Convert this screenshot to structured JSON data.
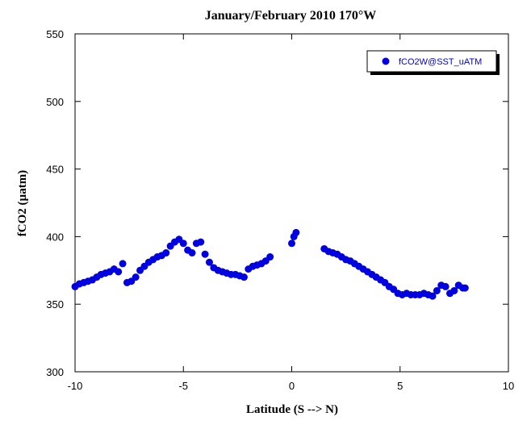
{
  "chart_data": {
    "type": "scatter",
    "title": "January/February 2010 170°W",
    "xlabel": "Latitude (S --> N)",
    "ylabel": "fCO2 (µatm)",
    "xlim": [
      -10,
      10
    ],
    "xticks": [
      -10,
      -5,
      0,
      5,
      10
    ],
    "ylim": [
      300,
      550
    ],
    "yticks": [
      300,
      350,
      400,
      450,
      500,
      550
    ],
    "legend": "upper right",
    "series": [
      {
        "name": "fCO2W@SST_uATM",
        "color": "#0000e0",
        "x": [
          -10.0,
          -9.8,
          -9.6,
          -9.4,
          -9.2,
          -9.0,
          -8.8,
          -8.6,
          -8.4,
          -8.2,
          -8.0,
          -7.8,
          -7.6,
          -7.4,
          -7.2,
          -7.0,
          -6.8,
          -6.6,
          -6.4,
          -6.2,
          -6.0,
          -5.8,
          -5.6,
          -5.4,
          -5.2,
          -5.0,
          -4.8,
          -4.6,
          -4.4,
          -4.2,
          -4.0,
          -3.8,
          -3.6,
          -3.4,
          -3.2,
          -3.0,
          -2.8,
          -2.6,
          -2.4,
          -2.2,
          -2.0,
          -1.8,
          -1.6,
          -1.4,
          -1.2,
          -1.0,
          0.0,
          0.1,
          0.2,
          1.5,
          1.7,
          1.9,
          2.1,
          2.3,
          2.5,
          2.7,
          2.9,
          3.1,
          3.3,
          3.5,
          3.7,
          3.9,
          4.1,
          4.3,
          4.5,
          4.7,
          4.9,
          5.1,
          5.3,
          5.5,
          5.7,
          5.9,
          6.1,
          6.3,
          6.5,
          6.7,
          6.9,
          7.1,
          7.3,
          7.5,
          7.7,
          7.9,
          8.0
        ],
        "values": [
          363,
          365,
          366,
          367,
          368,
          370,
          372,
          373,
          374,
          376,
          374,
          380,
          366,
          367,
          370,
          375,
          378,
          381,
          383,
          385,
          386,
          388,
          393,
          396,
          398,
          395,
          390,
          388,
          395,
          396,
          387,
          381,
          377,
          375,
          374,
          373,
          372,
          372,
          371,
          370,
          376,
          378,
          379,
          380,
          382,
          385,
          395,
          400,
          403,
          391,
          389,
          388,
          387,
          385,
          383,
          382,
          380,
          378,
          376,
          374,
          372,
          370,
          368,
          366,
          363,
          361,
          358,
          357,
          358,
          357,
          357,
          357,
          358,
          357,
          356,
          360,
          364,
          363,
          358,
          360,
          364,
          362,
          362
        ]
      }
    ]
  }
}
